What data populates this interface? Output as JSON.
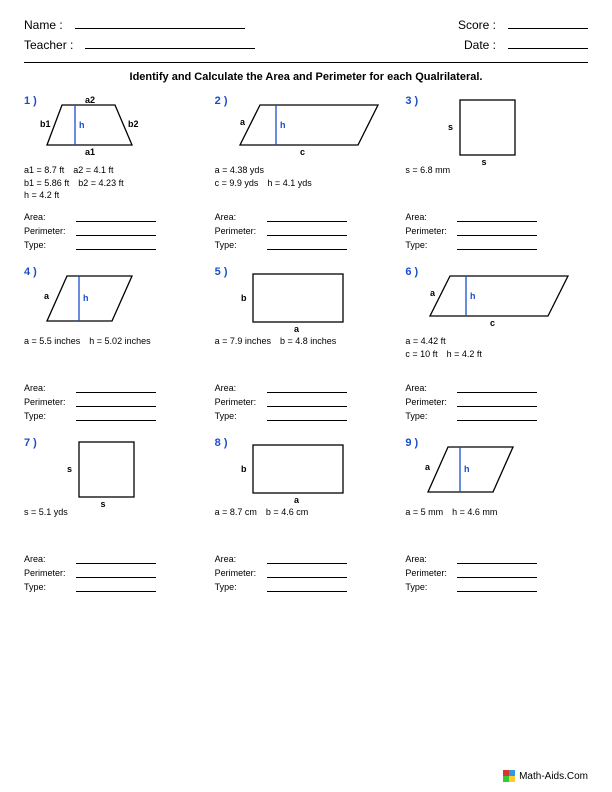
{
  "header": {
    "name_label": "Name :",
    "teacher_label": "Teacher :",
    "score_label": "Score :",
    "date_label": "Date :"
  },
  "instructions": "Identify and Calculate the Area and Perimeter for each Qualrilateral.",
  "answers": {
    "area": "Area:",
    "perimeter": "Perimeter:",
    "type": "Type:"
  },
  "problems": [
    {
      "num": "1 )",
      "shape": "trapezoid",
      "labels": {
        "a1": "a1",
        "a2": "a2",
        "b1": "b1",
        "b2": "b2",
        "h": "h"
      },
      "given": [
        "a1 = 8.7 ft a2 = 4.1 ft",
        "b1 = 5.86 ft b2 = 4.23 ft",
        "h = 4.2 ft"
      ]
    },
    {
      "num": "2 )",
      "shape": "parallelogram-long",
      "labels": {
        "a": "a",
        "h": "h",
        "c": "c"
      },
      "given": [
        "a = 4.38 yds",
        "c = 9.9 yds h = 4.1 yds"
      ]
    },
    {
      "num": "3 )",
      "shape": "square",
      "labels": {
        "s": "s"
      },
      "given": [
        "s = 6.8 mm"
      ]
    },
    {
      "num": "4 )",
      "shape": "rhombus-short",
      "labels": {
        "a": "a",
        "h": "h"
      },
      "given": [
        "a = 5.5 inches h = 5.02 inches"
      ]
    },
    {
      "num": "5 )",
      "shape": "rectangle",
      "labels": {
        "a": "a",
        "b": "b"
      },
      "given": [
        "a = 7.9 inches b = 4.8 inches"
      ]
    },
    {
      "num": "6 )",
      "shape": "parallelogram-long",
      "labels": {
        "a": "a",
        "h": "h",
        "c": "c"
      },
      "given": [
        "a = 4.42 ft",
        "c = 10 ft h = 4.2 ft"
      ]
    },
    {
      "num": "7 )",
      "shape": "square",
      "labels": {
        "s": "s"
      },
      "given": [
        "s = 5.1 yds"
      ]
    },
    {
      "num": "8 )",
      "shape": "rectangle",
      "labels": {
        "a": "a",
        "b": "b"
      },
      "given": [
        "a = 8.7 cm b = 4.6 cm"
      ]
    },
    {
      "num": "9 )",
      "shape": "rhombus-short",
      "labels": {
        "a": "a",
        "h": "h"
      },
      "given": [
        "a = 5 mm h = 4.6 mm"
      ]
    }
  ],
  "footer": {
    "text": "Math-Aids.Com",
    "logo_colors": [
      "#d33",
      "#39d",
      "#3c3",
      "#fc3"
    ]
  },
  "style": {
    "num_color": "#1a4fc9",
    "height_color": "#1a4fc9",
    "line_color": "#000"
  }
}
